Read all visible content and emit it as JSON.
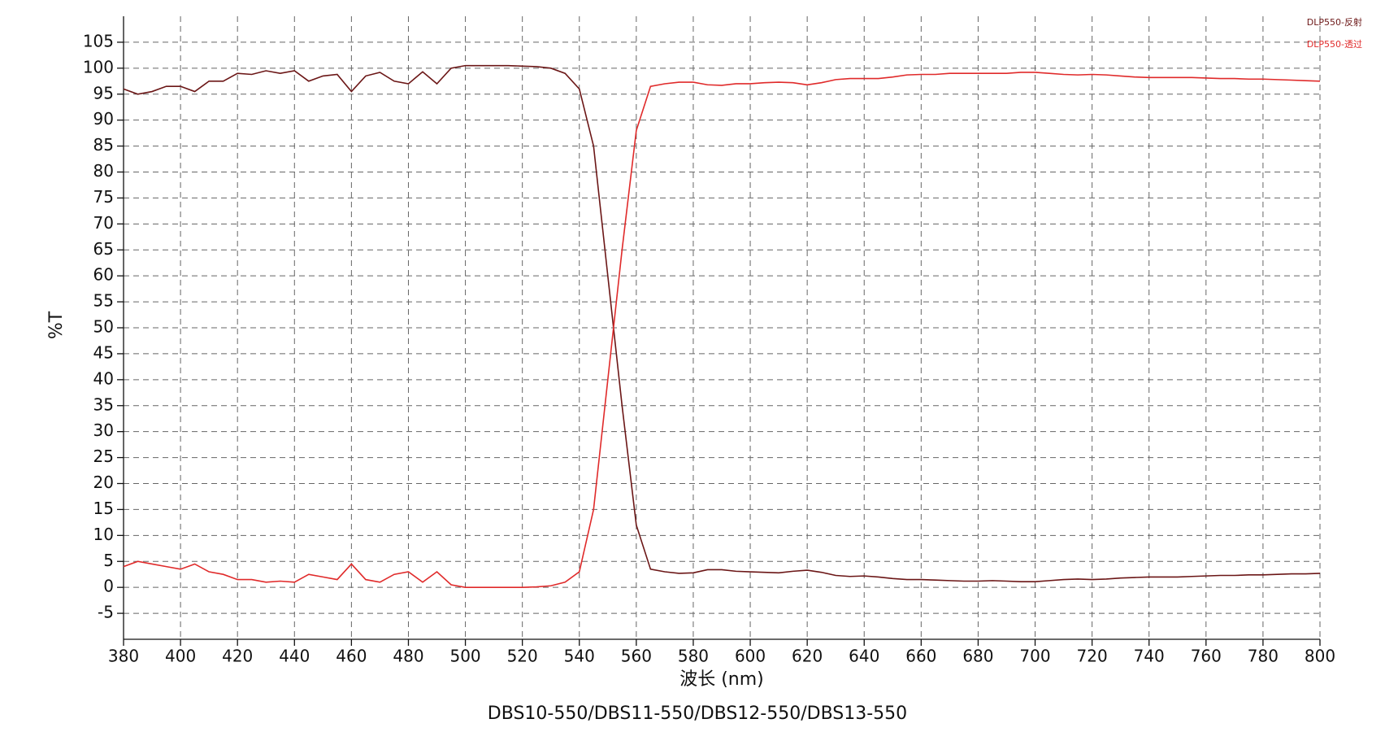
{
  "chart_data": {
    "type": "line",
    "title": "DBS10-550/DBS11-550/DBS12-550/DBS13-550",
    "xlabel": "波长 (nm)",
    "ylabel": "%T",
    "x": [
      380,
      385,
      390,
      395,
      400,
      405,
      410,
      415,
      420,
      425,
      430,
      435,
      440,
      445,
      450,
      455,
      460,
      465,
      470,
      475,
      480,
      485,
      490,
      495,
      500,
      505,
      510,
      515,
      520,
      525,
      530,
      535,
      540,
      545,
      550,
      555,
      560,
      565,
      570,
      575,
      580,
      585,
      590,
      595,
      600,
      605,
      610,
      615,
      620,
      625,
      630,
      635,
      640,
      645,
      650,
      655,
      660,
      665,
      670,
      675,
      680,
      685,
      690,
      695,
      700,
      705,
      710,
      715,
      720,
      725,
      730,
      735,
      740,
      745,
      750,
      755,
      760,
      765,
      770,
      775,
      780,
      785,
      790,
      795,
      800
    ],
    "series": [
      {
        "name": "DLP550-反射",
        "color": "#6b1616",
        "values": [
          96,
          95,
          95.5,
          96.5,
          96.5,
          95.5,
          97.5,
          97.5,
          99,
          98.8,
          99.5,
          99,
          99.5,
          97.5,
          98.5,
          98.8,
          95.5,
          98.5,
          99.2,
          97.5,
          97,
          99.3,
          97,
          100,
          100.5,
          100.5,
          100.5,
          100.5,
          100.4,
          100.3,
          100,
          99,
          96,
          85,
          60,
          35,
          12,
          3.5,
          3,
          2.7,
          2.8,
          3.4,
          3.4,
          3.1,
          3,
          2.9,
          2.8,
          3.1,
          3.3,
          2.9,
          2.3,
          2.1,
          2.2,
          2,
          1.7,
          1.5,
          1.5,
          1.4,
          1.3,
          1.2,
          1.2,
          1.3,
          1.2,
          1.1,
          1.1,
          1.3,
          1.5,
          1.6,
          1.5,
          1.6,
          1.8,
          1.9,
          2,
          2,
          2,
          2.1,
          2.2,
          2.3,
          2.3,
          2.4,
          2.4,
          2.5,
          2.6,
          2.6,
          2.7
        ]
      },
      {
        "name": "DLP550-透过",
        "color": "#e02a2a",
        "values": [
          4,
          5,
          4.5,
          4,
          3.5,
          4.5,
          3,
          2.5,
          1.5,
          1.5,
          1,
          1.2,
          1,
          2.5,
          2,
          1.5,
          4.5,
          1.5,
          1,
          2.5,
          3,
          1,
          3,
          0.5,
          0,
          0,
          0,
          0,
          0,
          0.1,
          0.3,
          1,
          3,
          15,
          40,
          65,
          88,
          96.5,
          97,
          97.3,
          97.3,
          96.8,
          96.7,
          97,
          97,
          97.2,
          97.3,
          97.2,
          96.8,
          97.2,
          97.8,
          98,
          98,
          98,
          98.3,
          98.7,
          98.8,
          98.8,
          99,
          99,
          99,
          99,
          99,
          99.2,
          99.2,
          99,
          98.8,
          98.7,
          98.8,
          98.7,
          98.5,
          98.3,
          98.2,
          98.2,
          98.2,
          98.2,
          98.1,
          98,
          98,
          97.9,
          97.9,
          97.8,
          97.7,
          97.6,
          97.5
        ]
      }
    ],
    "xlim": [
      380,
      800
    ],
    "xticks": [
      380,
      400,
      420,
      440,
      460,
      480,
      500,
      520,
      540,
      560,
      580,
      600,
      620,
      640,
      660,
      680,
      700,
      720,
      740,
      760,
      780,
      800
    ],
    "ylim": [
      -10,
      110
    ],
    "yticks": [
      -5,
      0,
      5,
      10,
      15,
      20,
      25,
      30,
      35,
      40,
      45,
      50,
      55,
      60,
      65,
      70,
      75,
      80,
      85,
      90,
      95,
      100,
      105
    ],
    "grid": true,
    "legend": "upper right"
  }
}
